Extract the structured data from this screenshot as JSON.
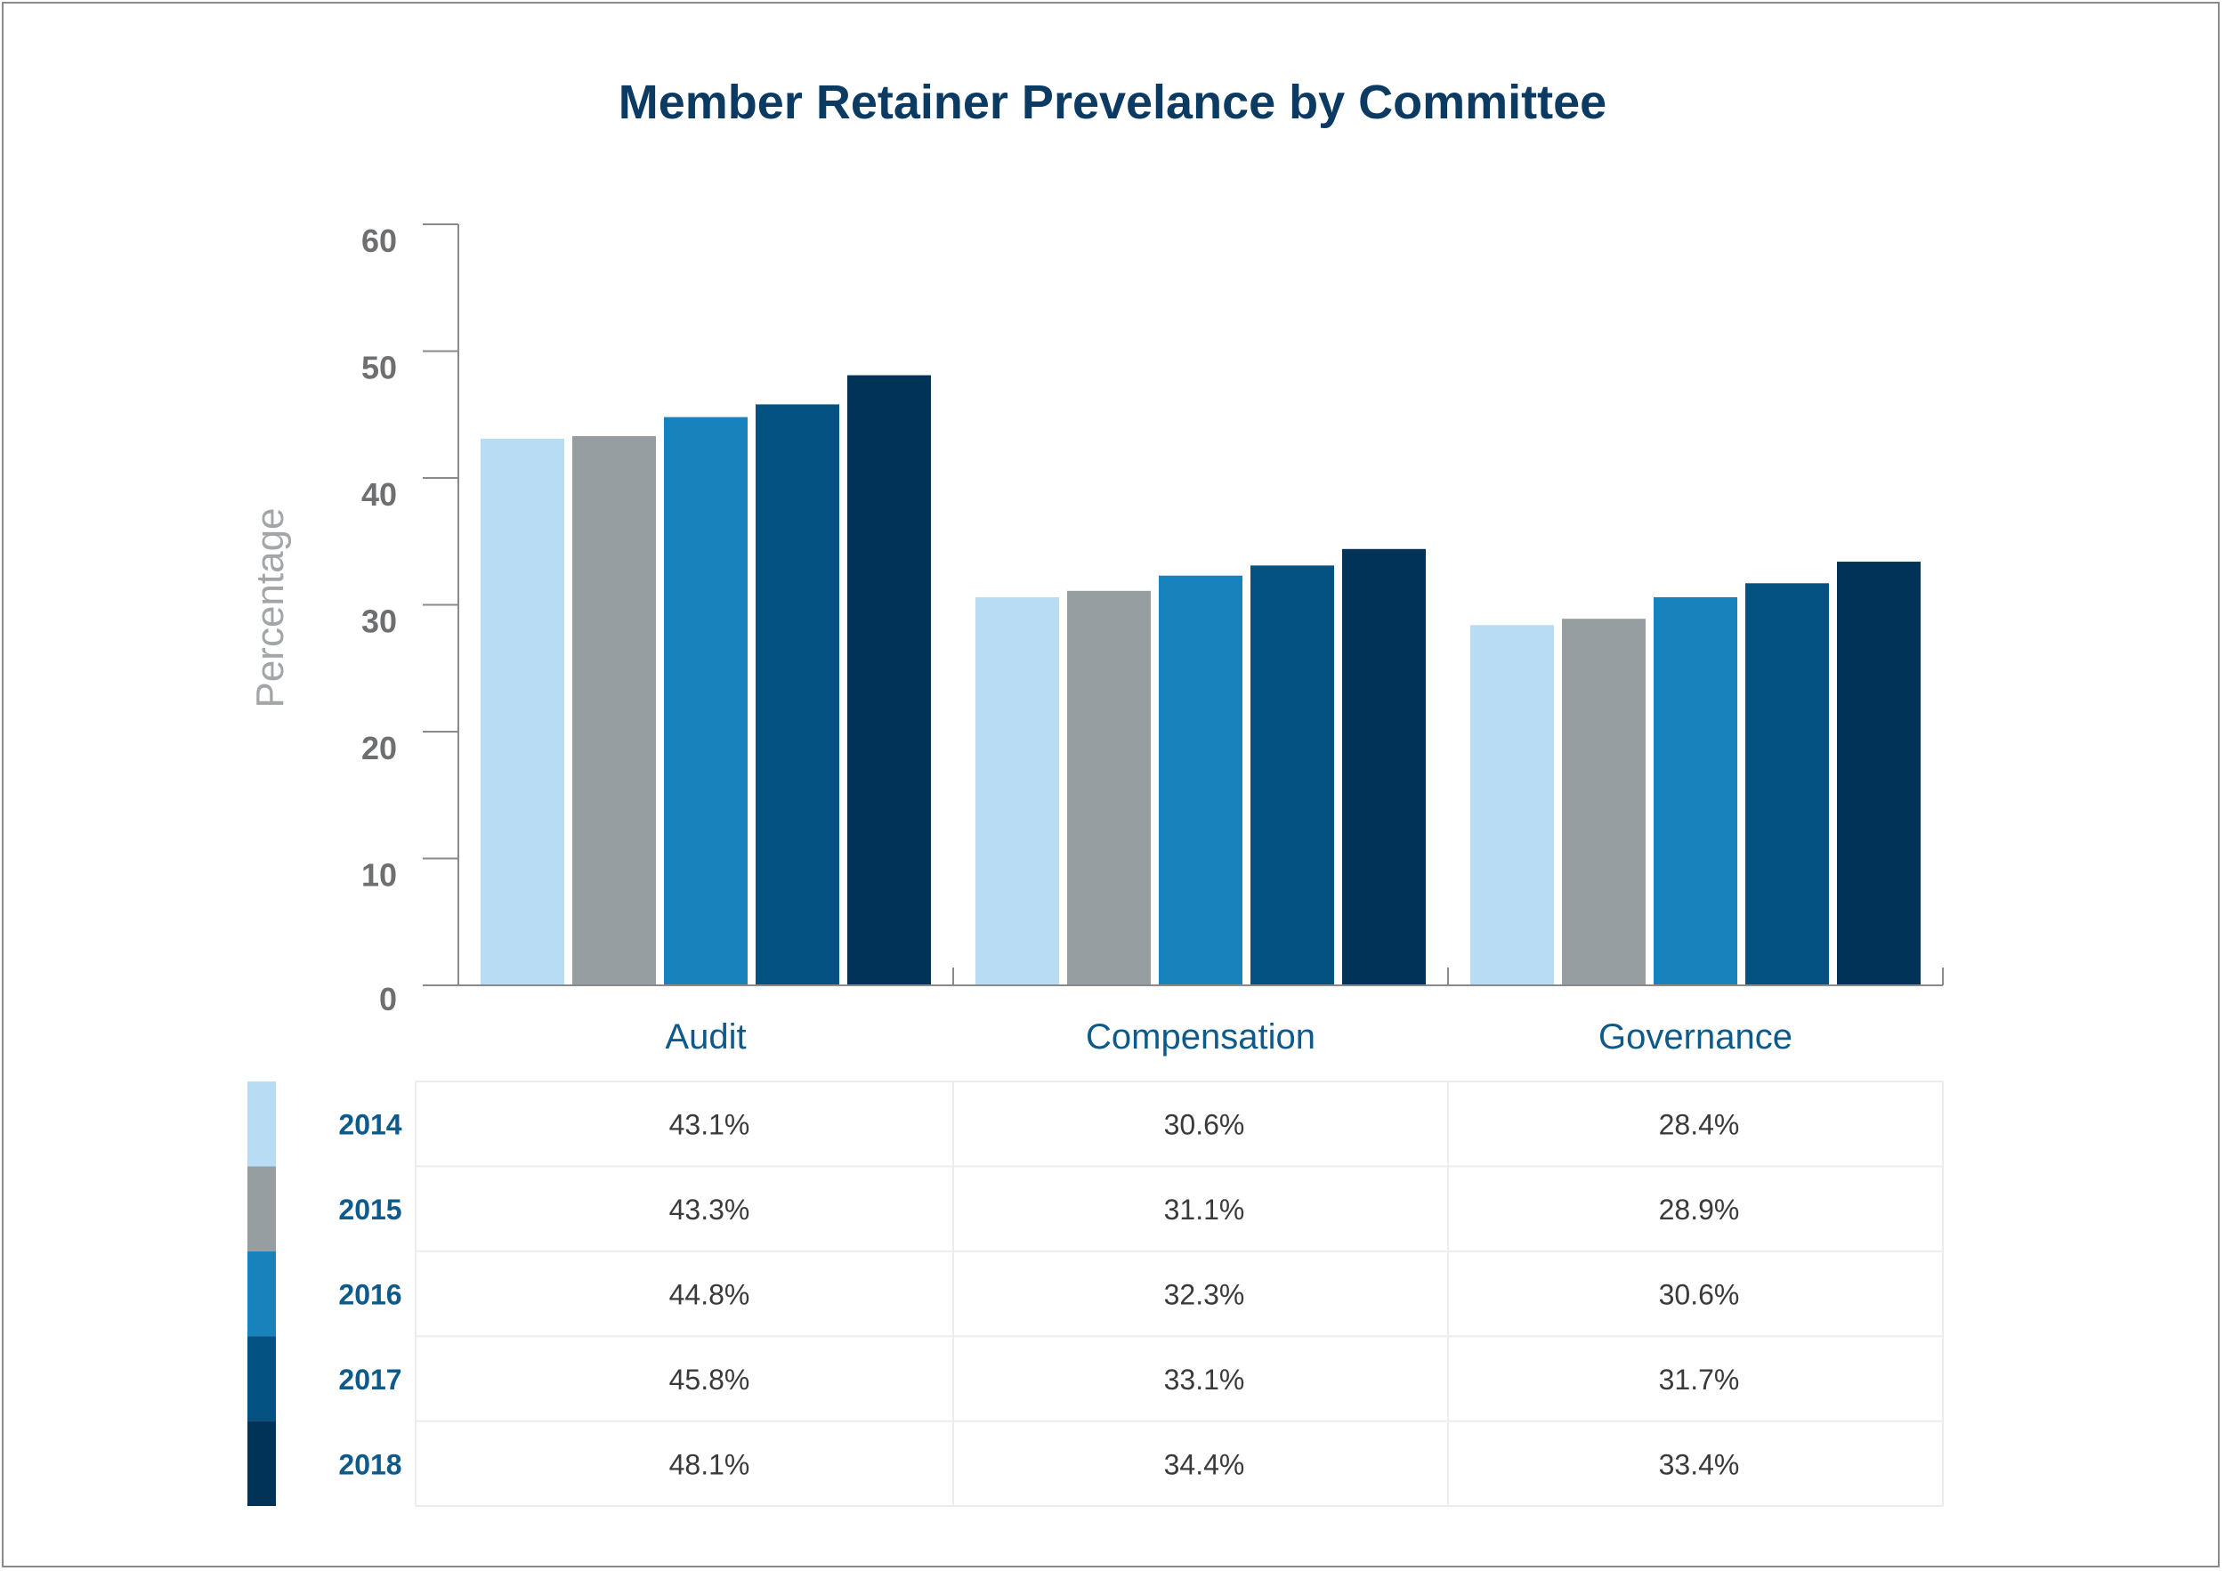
{
  "chart_data": {
    "type": "bar",
    "title": "Member Retainer Prevelance by Committee",
    "ylabel": "Percentage",
    "xlabel": "",
    "ylim": [
      0,
      60
    ],
    "yticks": [
      0,
      10,
      20,
      30,
      40,
      50,
      60
    ],
    "categories": [
      "Audit",
      "Compensation",
      "Governance"
    ],
    "series": [
      {
        "name": "2014",
        "color": "#b8dcf4",
        "values": [
          43.1,
          30.6,
          28.4
        ],
        "labels": [
          "43.1%",
          "30.6%",
          "28.4%"
        ]
      },
      {
        "name": "2015",
        "color": "#979ea1",
        "values": [
          43.3,
          31.1,
          28.9
        ],
        "labels": [
          "43.3%",
          "31.1%",
          "28.9%"
        ]
      },
      {
        "name": "2016",
        "color": "#1882bd",
        "values": [
          44.8,
          32.3,
          30.6
        ],
        "labels": [
          "44.8%",
          "32.3%",
          "30.6%"
        ]
      },
      {
        "name": "2017",
        "color": "#035282",
        "values": [
          45.8,
          33.1,
          31.7
        ],
        "labels": [
          "45.8%",
          "33.1%",
          "31.7%"
        ]
      },
      {
        "name": "2018",
        "color": "#003357",
        "values": [
          48.1,
          34.4,
          33.4
        ],
        "labels": [
          "48.1%",
          "34.4%",
          "33.4%"
        ]
      }
    ],
    "grid": false,
    "legend": "data-table-below"
  }
}
